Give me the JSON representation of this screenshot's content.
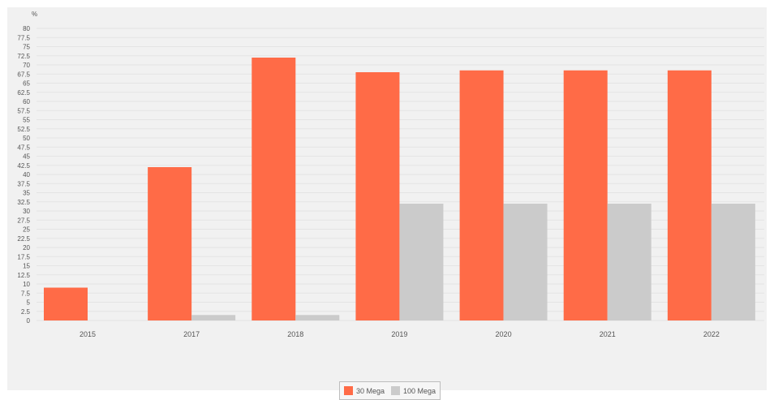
{
  "chart_data": {
    "type": "bar",
    "unit_label": "%",
    "categories": [
      "2015",
      "2017",
      "2018",
      "2019",
      "2020",
      "2021",
      "2022"
    ],
    "series": [
      {
        "name": "30 Mega",
        "color": "#ff6b47",
        "values": [
          9,
          42,
          72,
          68,
          68.5,
          68.5,
          68.5
        ]
      },
      {
        "name": "100 Mega",
        "color": "#cbcbcb",
        "values": [
          0,
          1.5,
          1.5,
          32,
          32,
          32,
          32
        ]
      }
    ],
    "ylim": [
      0,
      80
    ],
    "yticks": [
      "0",
      "2.5",
      "5",
      "7.5",
      "10",
      "12.5",
      "15",
      "17.5",
      "20",
      "22.5",
      "25",
      "27.5",
      "30",
      "32.5",
      "35",
      "37.5",
      "40",
      "42.5",
      "45",
      "47.5",
      "50",
      "52.5",
      "55",
      "57.5",
      "60",
      "62.5",
      "65",
      "67.5",
      "70",
      "72.5",
      "75",
      "77.5",
      "80"
    ],
    "grid": true,
    "legend_position": "bottom-center"
  }
}
